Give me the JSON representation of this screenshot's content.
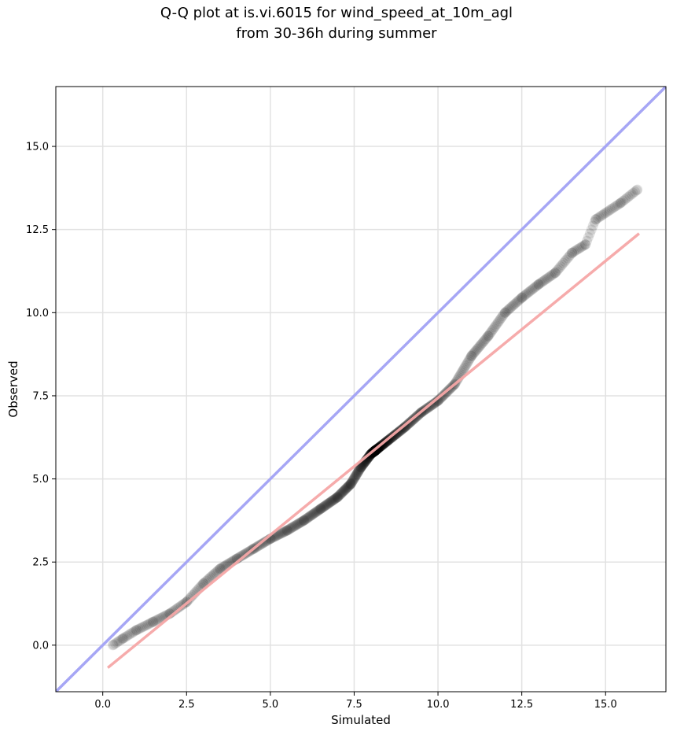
{
  "chart_data": {
    "type": "scatter",
    "title_line1": "Q-Q plot at is.vi.6015 for wind_speed_at_10m_agl",
    "title_line2": "from 30-36h during summer",
    "xlabel": "Simulated",
    "ylabel": "Observed",
    "xlim": [
      -1.4,
      16.8
    ],
    "ylim": [
      -1.4,
      16.8
    ],
    "xticks": [
      "0.0",
      "2.5",
      "5.0",
      "7.5",
      "10.0",
      "12.5",
      "15.0"
    ],
    "yticks": [
      "0.0",
      "2.5",
      "5.0",
      "7.5",
      "10.0",
      "12.5",
      "15.0"
    ],
    "grid": true,
    "identity_line": {
      "color": "#a6a6f5"
    },
    "fit_line": {
      "x": [
        0.15,
        16.0
      ],
      "y": [
        -0.68,
        12.38
      ],
      "color": "#f5a6a6"
    },
    "quantile_color": "#000000",
    "series": [
      {
        "anchors": [
          [
            0.3,
            0.0
          ],
          [
            0.6,
            0.2
          ],
          [
            1.0,
            0.45
          ],
          [
            1.5,
            0.7
          ],
          [
            2.0,
            0.95
          ],
          [
            2.5,
            1.3
          ],
          [
            3.0,
            1.85
          ],
          [
            3.5,
            2.3
          ],
          [
            4.0,
            2.6
          ],
          [
            4.5,
            2.9
          ],
          [
            5.0,
            3.2
          ],
          [
            5.5,
            3.45
          ],
          [
            6.0,
            3.75
          ],
          [
            6.5,
            4.1
          ],
          [
            7.0,
            4.45
          ],
          [
            7.4,
            4.85
          ],
          [
            7.7,
            5.35
          ],
          [
            8.0,
            5.75
          ],
          [
            8.5,
            6.15
          ],
          [
            9.0,
            6.55
          ],
          [
            9.5,
            7.0
          ],
          [
            10.0,
            7.35
          ],
          [
            10.5,
            7.85
          ],
          [
            11.0,
            8.7
          ],
          [
            11.5,
            9.3
          ],
          [
            12.0,
            10.0
          ],
          [
            12.5,
            10.45
          ],
          [
            13.0,
            10.85
          ],
          [
            13.5,
            11.2
          ],
          [
            14.0,
            11.8
          ],
          [
            14.4,
            12.05
          ],
          [
            14.7,
            12.8
          ],
          [
            15.45,
            13.3
          ],
          [
            15.95,
            13.7
          ]
        ]
      }
    ]
  }
}
